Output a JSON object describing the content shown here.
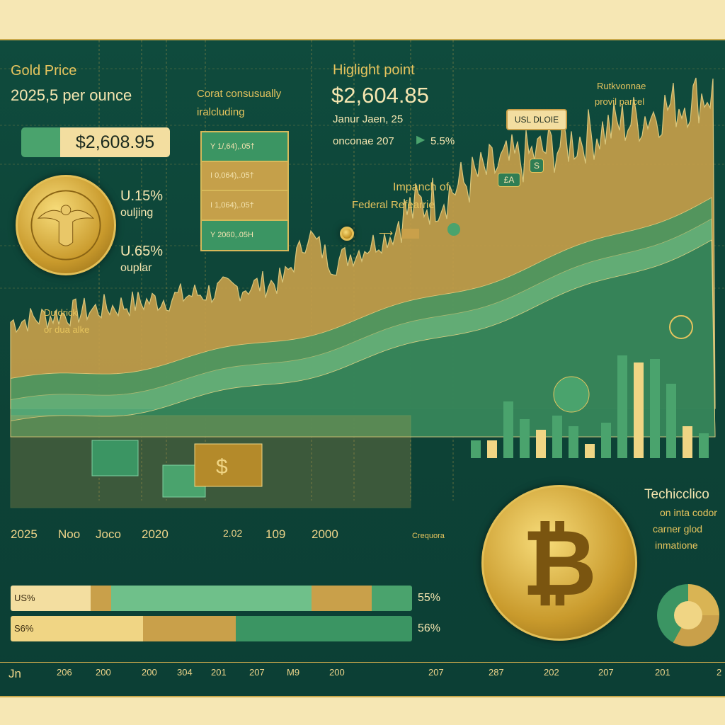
{
  "header": {
    "title": "Gold Price",
    "subtitle": "2025,5 per ounce",
    "price": "$2,608.95"
  },
  "stats": [
    {
      "value": "U.15%",
      "label": "ouljing"
    },
    {
      "value": "U.65%",
      "label": "ouplar"
    }
  ],
  "note": {
    "line1": "Corat consusually",
    "line2": "iralcluding"
  },
  "table": {
    "rows": [
      "Y  1/,64),.05†",
      "I  0,064),.05†",
      "I  1,064),.05†",
      "Y  2060,.05H"
    ]
  },
  "highlight": {
    "title": "Higlight point",
    "price": "$2,604.85",
    "date": "Janur  Jaen, 25",
    "change_label": "onconae 207",
    "change_value": "5.5%"
  },
  "impact": {
    "line1": "Impanch of",
    "line2": "Federal Refearrie"
  },
  "tags": {
    "usd": "USL DLOIE",
    "s": "S",
    "ea": "£A"
  },
  "annotation": {
    "line1": "Rutkvonnae",
    "line2": "provil parcel"
  },
  "left_note": {
    "line1": "Duldrick",
    "line2": "or dua alke"
  },
  "x_axis": [
    "2025",
    "Noo",
    "Joco",
    "2020",
    "2.02",
    "109",
    "2000"
  ],
  "side_label": "Crequora",
  "bars": [
    {
      "label": "US%",
      "value": "55%"
    },
    {
      "label": "S6%",
      "value": "56%"
    }
  ],
  "bottom_axis": [
    "Jn",
    "206",
    "200",
    "200",
    "304",
    "201",
    "207",
    "M9",
    "200",
    "207",
    "287",
    "202",
    "207",
    "201",
    "2"
  ],
  "tech": {
    "title": "Techicclico",
    "line1": "on inta codor",
    "line2": "carner glod",
    "line3": "inmatione"
  },
  "colors": {
    "bg": "#0f4b3d",
    "gold": "#e6c45e",
    "green": "#4aa36d",
    "cream": "#f6e7b4"
  }
}
